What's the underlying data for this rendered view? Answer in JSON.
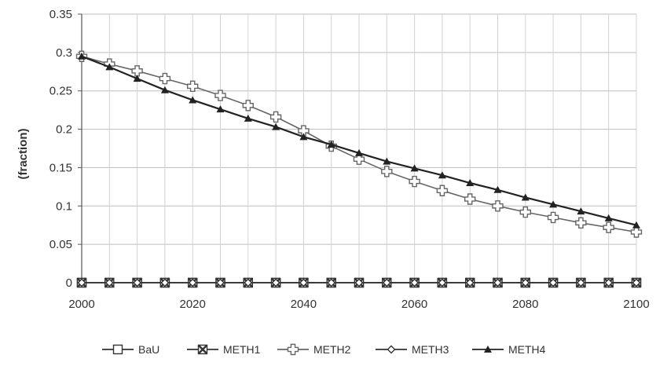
{
  "chart_data": {
    "type": "line",
    "title": "",
    "xlabel": "",
    "ylabel": "(fraction)",
    "xlim": [
      2000,
      2100
    ],
    "ylim": [
      0,
      0.35
    ],
    "x_ticks": [
      2000,
      2020,
      2040,
      2060,
      2080,
      2100
    ],
    "x_tick_labels": [
      "2000",
      "2020",
      "2040",
      "2060",
      "2080",
      "2100"
    ],
    "y_ticks": [
      0,
      0.05,
      0.1,
      0.15,
      0.2,
      0.25,
      0.3,
      0.35
    ],
    "y_tick_labels": [
      "0",
      "0.05",
      "0.1",
      "0.15",
      "0.2",
      "0.25",
      "0.3",
      "0.35"
    ],
    "grid": true,
    "legend_position": "bottom",
    "x": [
      2000,
      2005,
      2010,
      2015,
      2020,
      2025,
      2030,
      2035,
      2040,
      2045,
      2050,
      2055,
      2060,
      2065,
      2070,
      2075,
      2080,
      2085,
      2090,
      2095,
      2100
    ],
    "series": [
      {
        "name": "BaU",
        "marker": "square-open",
        "color": "#333333",
        "values": [
          0,
          0,
          0,
          0,
          0,
          0,
          0,
          0,
          0,
          0,
          0,
          0,
          0,
          0,
          0,
          0,
          0,
          0,
          0,
          0,
          0
        ]
      },
      {
        "name": "METH1",
        "marker": "x-box",
        "color": "#333333",
        "values": [
          0,
          0,
          0,
          0,
          0,
          0,
          0,
          0,
          0,
          0,
          0,
          0,
          0,
          0,
          0,
          0,
          0,
          0,
          0,
          0,
          0
        ]
      },
      {
        "name": "METH2",
        "marker": "cross-open",
        "color": "#666666",
        "values": [
          0.295,
          0.285,
          0.276,
          0.266,
          0.256,
          0.244,
          0.231,
          0.216,
          0.198,
          0.178,
          0.161,
          0.145,
          0.132,
          0.12,
          0.109,
          0.1,
          0.092,
          0.085,
          0.078,
          0.072,
          0.066
        ]
      },
      {
        "name": "METH3",
        "marker": "diamond-open",
        "color": "#333333",
        "values": [
          0,
          0,
          0,
          0,
          0,
          0,
          0,
          0,
          0,
          0,
          0,
          0,
          0,
          0,
          0,
          0,
          0,
          0,
          0,
          0,
          0
        ]
      },
      {
        "name": "METH4",
        "marker": "triangle",
        "color": "#222222",
        "values": [
          0.295,
          0.281,
          0.266,
          0.251,
          0.238,
          0.226,
          0.214,
          0.203,
          0.19,
          0.18,
          0.169,
          0.158,
          0.149,
          0.14,
          0.13,
          0.121,
          0.111,
          0.102,
          0.093,
          0.084,
          0.075
        ]
      }
    ]
  }
}
